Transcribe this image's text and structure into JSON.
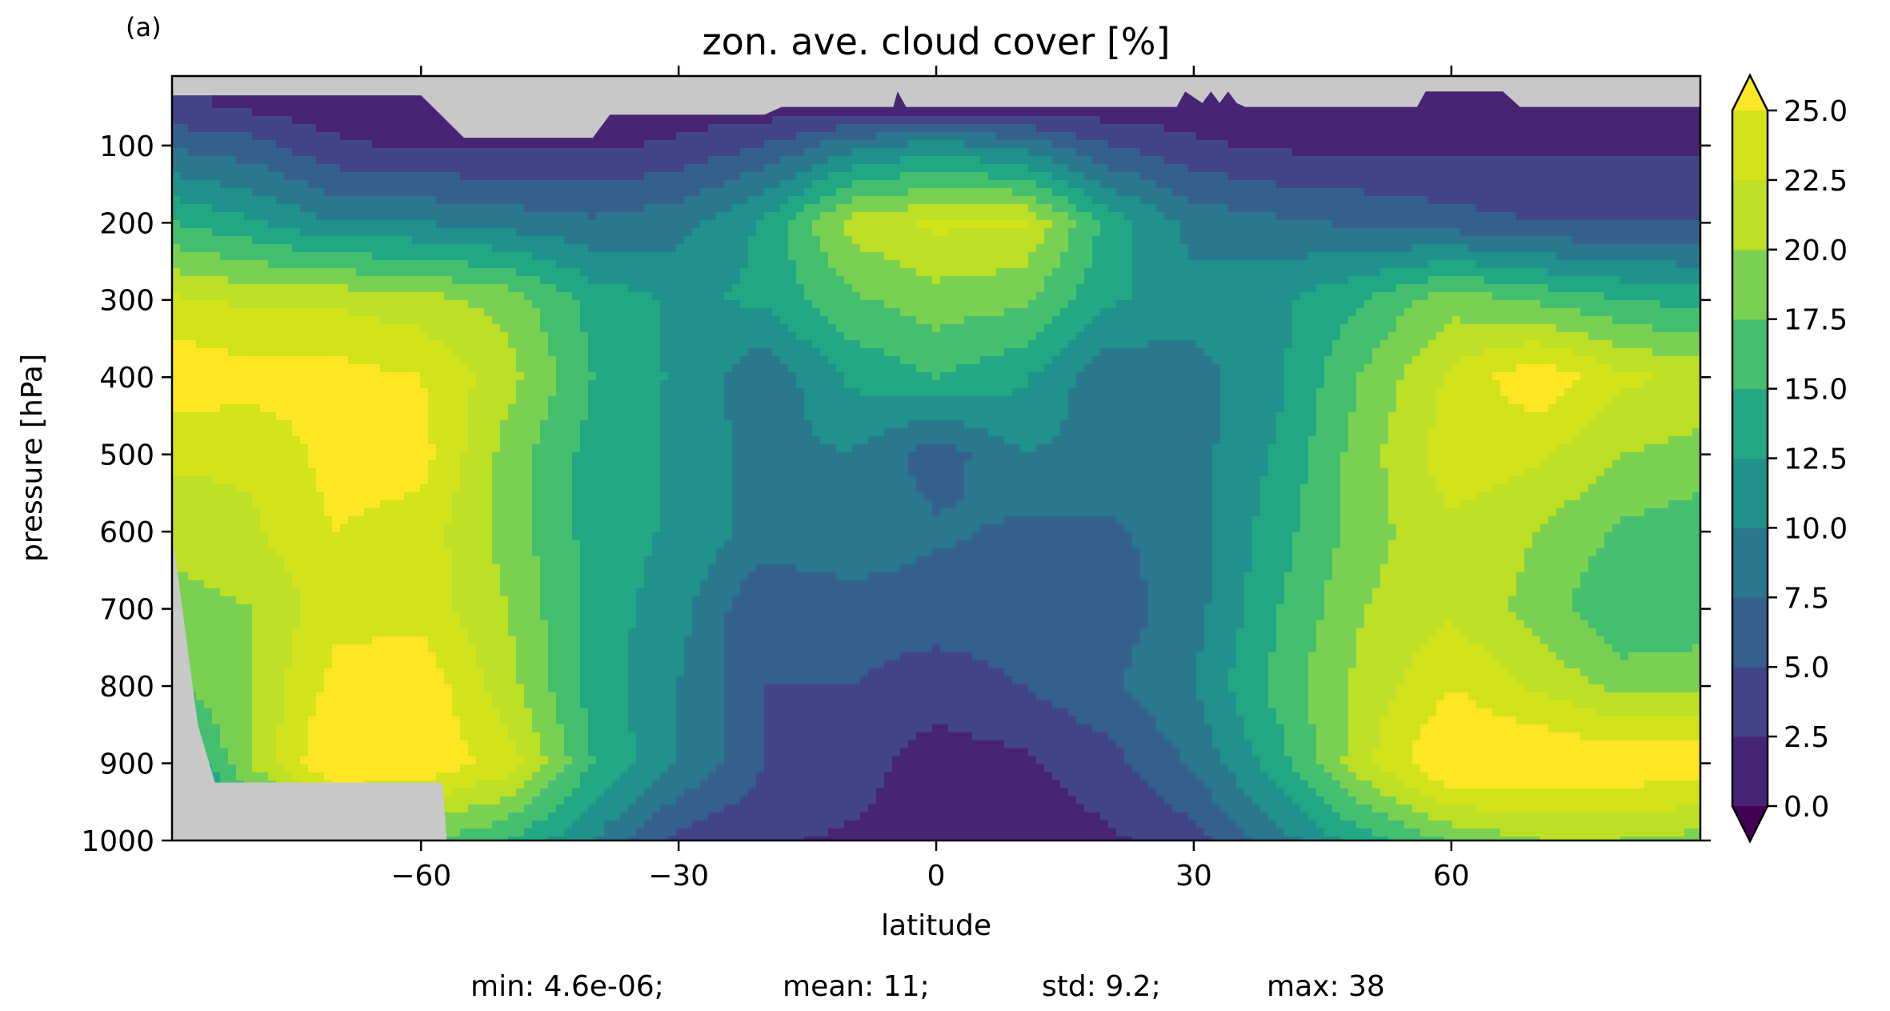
{
  "panel_label": "(a)",
  "chart_data": {
    "type": "contour",
    "title": "zon. ave. cloud cover [%]",
    "xlabel": "latitude",
    "ylabel": "pressure [hPa]",
    "x_ticks": [
      -60,
      -30,
      0,
      30,
      60
    ],
    "x_tick_labels": [
      "−60",
      "−30",
      "0",
      "30",
      "60"
    ],
    "y_ticks": [
      100,
      200,
      300,
      400,
      500,
      600,
      700,
      800,
      900,
      1000
    ],
    "y_tick_labels": [
      "100",
      "200",
      "300",
      "400",
      "500",
      "600",
      "700",
      "800",
      "900",
      "1000"
    ],
    "xlim": [
      -89,
      89
    ],
    "ylim": [
      1000,
      10
    ],
    "y_inverted": true,
    "missing_color": "#c8c8c8",
    "colorbar": {
      "levels": [
        0.0,
        2.5,
        5.0,
        7.5,
        10.0,
        12.5,
        15.0,
        17.5,
        20.0,
        22.5,
        25.0
      ],
      "tick_labels": [
        "0.0",
        "2.5",
        "5.0",
        "7.5",
        "10.0",
        "12.5",
        "15.0",
        "17.5",
        "20.0",
        "22.5",
        "25.0"
      ],
      "colors": [
        "#482475",
        "#414487",
        "#355f8d",
        "#2a788e",
        "#21918c",
        "#22a884",
        "#44bf70",
        "#7ad151",
        "#bddf26",
        "#d2e21b"
      ],
      "under_color": "#440154",
      "over_color": "#fde725",
      "extend": "both"
    },
    "field": {
      "lat": [
        -89,
        -80,
        -70,
        -60,
        -50,
        -40,
        -30,
        -20,
        -10,
        0,
        10,
        20,
        30,
        40,
        50,
        60,
        70,
        80,
        89
      ],
      "pressure": [
        50,
        100,
        200,
        300,
        400,
        500,
        600,
        700,
        800,
        900,
        1000
      ],
      "values": [
        [
          3,
          2,
          1,
          1,
          1,
          1,
          1,
          1,
          1,
          1,
          1,
          1,
          1,
          1,
          1,
          1,
          1,
          1,
          1
        ],
        [
          7,
          6,
          3,
          2,
          2,
          2,
          3,
          5,
          9,
          11,
          9,
          5,
          3,
          2,
          2,
          2,
          2,
          2,
          2
        ],
        [
          15,
          13,
          10,
          10,
          9,
          8,
          9,
          13,
          21,
          23,
          23,
          14,
          9,
          8,
          7,
          6,
          5,
          5,
          5
        ],
        [
          23,
          22,
          22,
          21,
          19,
          14,
          12,
          13,
          17,
          19,
          18,
          13,
          11,
          12,
          15,
          19,
          17,
          15,
          14
        ],
        [
          27,
          26,
          26,
          25,
          21,
          15,
          12,
          8,
          13,
          15,
          13,
          8,
          9,
          12,
          18,
          23,
          27,
          23,
          22
        ],
        [
          23,
          23,
          26,
          26,
          19,
          14,
          12,
          9,
          10,
          6,
          10,
          9,
          9,
          13,
          19,
          24,
          23,
          20,
          19
        ],
        [
          21,
          22,
          25,
          24,
          19,
          14,
          12,
          9,
          10,
          8,
          7,
          7,
          9,
          14,
          19,
          22,
          20,
          17,
          16
        ],
        [
          19,
          20,
          24,
          24,
          20,
          14,
          11,
          5,
          6,
          6,
          6,
          6,
          9,
          15,
          20,
          22,
          19,
          15,
          16
        ],
        [
          17,
          20,
          26,
          27,
          21,
          14,
          10,
          5,
          5,
          4,
          5,
          7,
          10,
          16,
          21,
          25,
          22,
          19,
          19
        ],
        [
          11,
          20,
          28,
          27,
          24,
          15,
          10,
          5,
          4,
          1,
          2,
          4,
          8,
          14,
          22,
          28,
          28,
          27,
          27
        ],
        [
          5,
          12,
          18,
          18,
          15,
          10,
          4,
          3,
          2,
          1,
          1,
          2,
          4,
          9,
          14,
          18,
          20,
          20,
          19
        ]
      ]
    },
    "stats": [
      {
        "name": "min",
        "value": "4.6e-06"
      },
      {
        "name": "mean",
        "value": "11"
      },
      {
        "name": "std",
        "value": "9.2"
      },
      {
        "name": "max",
        "value": "38"
      }
    ]
  }
}
